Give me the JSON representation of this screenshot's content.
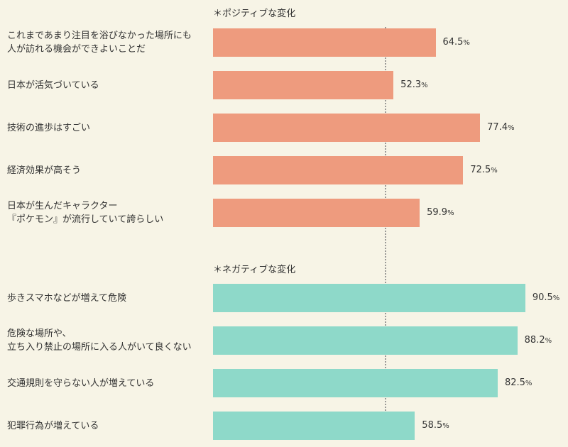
{
  "chart_data": {
    "type": "bar",
    "orientation": "horizontal",
    "unit": "%",
    "xlim": [
      0,
      100
    ],
    "sections": [
      {
        "title": "＊ポジティブな変化",
        "color": "#ee9b7e",
        "items": [
          {
            "label": "これまであまり注目を浴びなかった場所にも\n人が訪れる機会ができよいことだ",
            "value": 64.5,
            "value_label": "64.5"
          },
          {
            "label": "日本が活気づいている",
            "value": 52.3,
            "value_label": "52.3"
          },
          {
            "label": "技術の進歩はすごい",
            "value": 77.4,
            "value_label": "77.4"
          },
          {
            "label": "経済効果が高そう",
            "value": 72.5,
            "value_label": "72.5"
          },
          {
            "label": "日本が生んだキャラクター\n『ポケモン』が流行していて誇らしい",
            "value": 59.9,
            "value_label": "59.9"
          }
        ]
      },
      {
        "title": "＊ネガティブな変化",
        "color": "#8ed9c9",
        "items": [
          {
            "label": "歩きスマホなどが増えて危険",
            "value": 90.5,
            "value_label": "90.5"
          },
          {
            "label": "危険な場所や、\n立ち入り禁止の場所に入る人がいて良くない",
            "value": 88.2,
            "value_label": "88.2"
          },
          {
            "label": "交通規則を守らない人が増えている",
            "value": 82.5,
            "value_label": "82.5"
          },
          {
            "label": "犯罪行為が増えている",
            "value": 58.5,
            "value_label": "58.5"
          }
        ]
      }
    ],
    "reference_line": {
      "style": "dotted"
    }
  }
}
